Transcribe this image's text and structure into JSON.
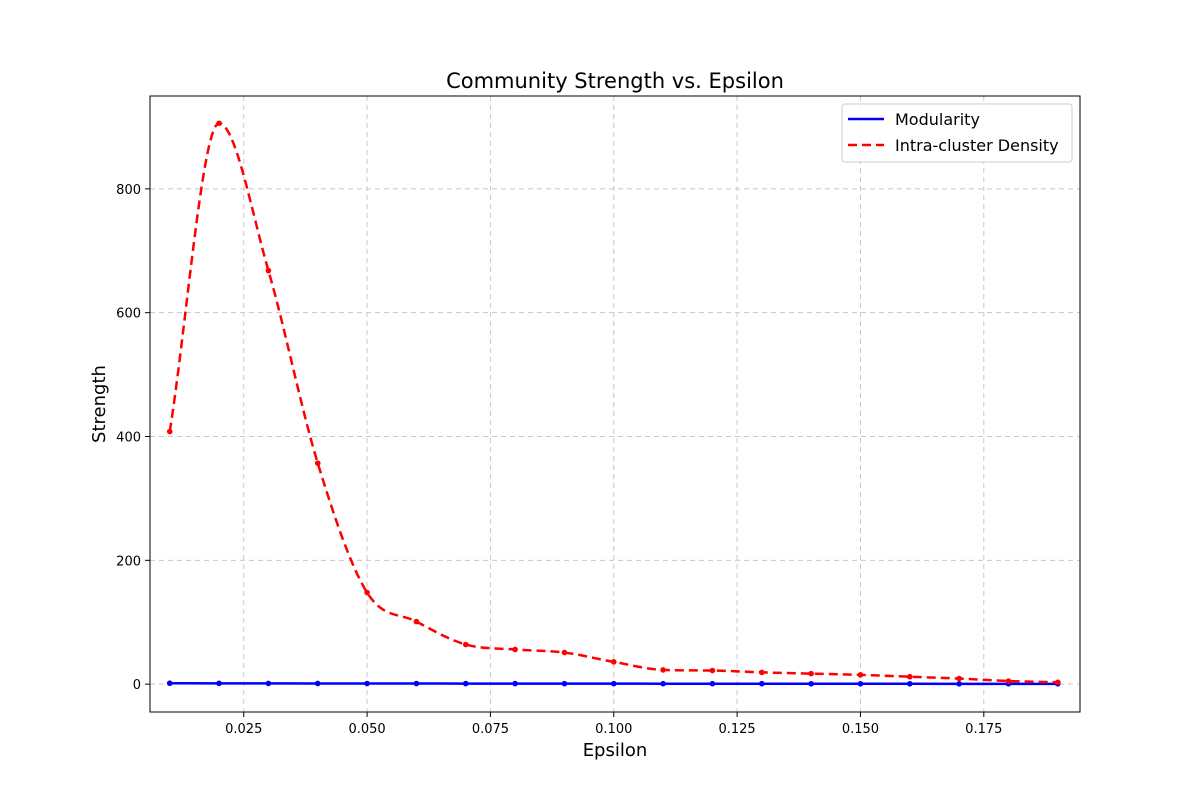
{
  "chart_data": {
    "type": "line",
    "title": "Community Strength vs. Epsilon",
    "xlabel": "Epsilon",
    "ylabel": "Strength",
    "xlim": [
      0.006,
      0.1945
    ],
    "ylim": [
      -45,
      950
    ],
    "x_ticks": [
      0.025,
      0.05,
      0.075,
      0.1,
      0.125,
      0.15,
      0.175
    ],
    "x_tick_labels": [
      "0.025",
      "0.050",
      "0.075",
      "0.100",
      "0.125",
      "0.150",
      "0.175"
    ],
    "y_ticks": [
      0,
      200,
      400,
      600,
      800
    ],
    "y_tick_labels": [
      "0",
      "200",
      "400",
      "600",
      "800"
    ],
    "grid": true,
    "legend_position": "top-right",
    "x": [
      0.01,
      0.02,
      0.03,
      0.04,
      0.05,
      0.06,
      0.07,
      0.08,
      0.09,
      0.1,
      0.11,
      0.12,
      0.13,
      0.14,
      0.15,
      0.16,
      0.17,
      0.18,
      0.19
    ],
    "series": [
      {
        "name": "Modularity",
        "color": "#0000ff",
        "line_style": "solid",
        "values": [
          1.5,
          1.3,
          1.2,
          1.1,
          1.0,
          1.0,
          0.9,
          0.9,
          0.8,
          0.8,
          0.7,
          0.7,
          0.7,
          0.6,
          0.6,
          0.6,
          0.5,
          0.5,
          0.5
        ]
      },
      {
        "name": "Intra-cluster Density",
        "color": "#ff0000",
        "line_style": "dashed",
        "values": [
          408,
          906,
          668,
          357,
          148,
          101,
          64,
          56,
          51,
          36,
          23,
          22,
          19,
          17,
          15,
          12,
          9,
          5,
          3
        ]
      }
    ]
  }
}
